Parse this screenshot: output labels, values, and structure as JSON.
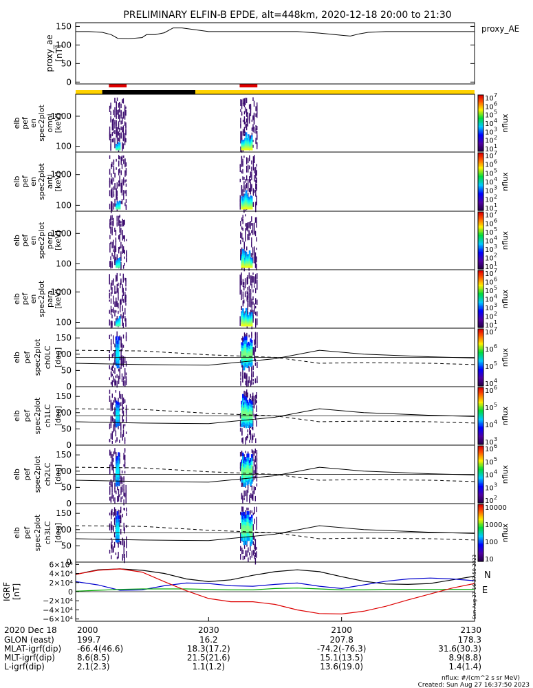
{
  "title": "PRELIMINARY ELFIN-B EPDE, alt=448km, 2020-12-18 20:00 to 21:30",
  "chart_data": [
    {
      "type": "line",
      "panel": "proxy_ae",
      "ylabel": [
        "proxy_ae",
        "[nT]"
      ],
      "legend": "proxy_AE",
      "ylim": [
        -5,
        160
      ],
      "yticks": [
        "0",
        "50",
        "100",
        "150"
      ],
      "x": [
        0,
        1,
        3,
        6,
        8,
        9.5,
        12,
        15,
        16,
        18,
        20,
        22,
        23,
        24,
        30,
        40,
        50,
        55,
        60,
        62,
        64,
        66,
        70,
        80,
        90
      ],
      "values": [
        136,
        136,
        136,
        134,
        128,
        118,
        117,
        120,
        128,
        128,
        133,
        146,
        146,
        146,
        136,
        136,
        136,
        132,
        126,
        124,
        130,
        134,
        136,
        136,
        136
      ]
    },
    {
      "type": "heatmap",
      "panel": "status_bar",
      "segments": [
        {
          "from": 0,
          "to": 6,
          "color": "#ffd200"
        },
        {
          "from": 6,
          "to": 27,
          "color": "#000000"
        },
        {
          "from": 27,
          "to": 90,
          "color": "#ffd200"
        }
      ],
      "science_zones": [
        [
          7.5,
          11.5
        ],
        [
          37.0,
          41.0
        ]
      ]
    },
    {
      "type": "heatmap",
      "panel": "omni",
      "ylabel": [
        "elb",
        "pef",
        "en",
        "spec2plot",
        "omni",
        "[keV]"
      ],
      "y_scale": "log",
      "yticks": [
        "100",
        "1000"
      ],
      "colorbar": {
        "label": "nflux",
        "ticks": [
          "10",
          "10",
          "10",
          "10",
          "10",
          "10",
          "10"
        ],
        "exps": [
          "1",
          "2",
          "3",
          "4",
          "5",
          "6",
          "7"
        ]
      }
    },
    {
      "type": "heatmap",
      "panel": "anti",
      "ylabel": [
        "elb",
        "pef",
        "en",
        "spec2plot",
        "anti",
        "[keV]"
      ],
      "y_scale": "log",
      "yticks": [
        "100",
        "1000"
      ],
      "colorbar": {
        "label": "nflux",
        "ticks": [
          "10",
          "10",
          "10",
          "10",
          "10",
          "10",
          "10"
        ],
        "exps": [
          "1",
          "2",
          "3",
          "4",
          "5",
          "6",
          "7"
        ]
      }
    },
    {
      "type": "heatmap",
      "panel": "perp",
      "ylabel": [
        "elb",
        "pef",
        "en",
        "spec2plot",
        "perp",
        "[keV]"
      ],
      "y_scale": "log",
      "yticks": [
        "100",
        "1000"
      ],
      "colorbar": {
        "label": "nflux",
        "ticks": [
          "10",
          "10",
          "10",
          "10",
          "10",
          "10",
          "10"
        ],
        "exps": [
          "1",
          "2",
          "3",
          "4",
          "5",
          "6",
          "7"
        ]
      }
    },
    {
      "type": "heatmap",
      "panel": "para",
      "ylabel": [
        "elb",
        "pef",
        "en",
        "spec2plot",
        "para",
        "[keV]"
      ],
      "y_scale": "log",
      "yticks": [
        "100",
        "1000"
      ],
      "colorbar": {
        "label": "nflux",
        "ticks": [
          "10",
          "10",
          "10",
          "10",
          "10",
          "10",
          "10"
        ],
        "exps": [
          "1",
          "2",
          "3",
          "4",
          "5",
          "6",
          "7"
        ]
      }
    },
    {
      "type": "heatmap",
      "panel": "ch0LC",
      "ylabel": [
        "elb",
        "pef",
        "spec2plot",
        "ch0LC",
        "[deg]"
      ],
      "ylim": [
        0,
        180
      ],
      "yticks": [
        "0",
        "50",
        "100",
        "150"
      ],
      "colorbar": {
        "label": "nflux",
        "ticks": [
          "10",
          "10",
          "10",
          "10"
        ],
        "exps": [
          "4",
          "5",
          "6",
          "7"
        ]
      }
    },
    {
      "type": "heatmap",
      "panel": "ch1LC",
      "ylabel": [
        "elb",
        "pef",
        "spec2plot",
        "ch1LC",
        "[deg]"
      ],
      "ylim": [
        0,
        180
      ],
      "yticks": [
        "0",
        "50",
        "100",
        "150"
      ],
      "colorbar": {
        "label": "nflux",
        "ticks": [
          "10",
          "10",
          "10",
          "10"
        ],
        "exps": [
          "3",
          "4",
          "5",
          "6"
        ]
      }
    },
    {
      "type": "heatmap",
      "panel": "ch2LC",
      "ylabel": [
        "elb",
        "pef",
        "spec2plot",
        "ch2LC",
        "[deg]"
      ],
      "ylim": [
        0,
        180
      ],
      "yticks": [
        "0",
        "50",
        "100",
        "150"
      ],
      "colorbar": {
        "label": "nflux",
        "ticks": [
          "10",
          "10",
          "10",
          "10",
          "10"
        ],
        "exps": [
          "2",
          "3",
          "4",
          "5",
          "6"
        ]
      }
    },
    {
      "type": "heatmap",
      "panel": "ch3LC",
      "ylabel": [
        "elb",
        "pef",
        "spec2plot",
        "ch3LC",
        "[deg]"
      ],
      "ylim": [
        0,
        180
      ],
      "yticks": [
        "0",
        "50",
        "100",
        "150"
      ],
      "colorbar": {
        "label": "nflux",
        "ticks": [
          "10",
          "100",
          "1000",
          "10000"
        ],
        "exps": [
          "",
          "",
          "",
          ""
        ]
      }
    },
    {
      "type": "line",
      "panel": "IGRF",
      "ylabel": [
        "IGRF",
        "[nT]"
      ],
      "ylim": [
        -65000,
        65000
      ],
      "yticks": [
        "6×10⁴",
        "4×10⁴",
        "2×10⁴",
        "0",
        "−2×10⁴",
        "−4×10⁴",
        "−6×10⁴"
      ],
      "legend": [
        "N",
        "E"
      ],
      "series": [
        {
          "name": "N",
          "color": "#000000",
          "x": [
            0,
            5,
            10,
            15,
            20,
            25,
            30,
            35,
            40,
            45,
            50,
            55,
            60,
            65,
            70,
            75,
            80,
            85,
            90
          ],
          "values": [
            38000,
            48000,
            50000,
            47000,
            40000,
            28000,
            22000,
            26000,
            36000,
            44000,
            48000,
            44000,
            33000,
            23000,
            17000,
            16000,
            18000,
            26000,
            34000
          ]
        },
        {
          "name": "E",
          "color": "#0000cc",
          "x": [
            0,
            5,
            10,
            15,
            20,
            25,
            30,
            35,
            40,
            45,
            50,
            55,
            60,
            65,
            70,
            75,
            80,
            85,
            90
          ],
          "values": [
            22000,
            15000,
            3000,
            4000,
            13000,
            19000,
            18000,
            13000,
            12000,
            16000,
            19000,
            12000,
            7000,
            15000,
            23000,
            28000,
            30000,
            28000,
            24000
          ]
        },
        {
          "name": "",
          "color": "#00aa00",
          "x": [
            0,
            5,
            10,
            15,
            20,
            25,
            30,
            35,
            40,
            45,
            50,
            55,
            60,
            65,
            70,
            75,
            80,
            85,
            90
          ],
          "values": [
            1000,
            3000,
            5000,
            6000,
            6000,
            6000,
            5000,
            4000,
            4000,
            7000,
            8000,
            6000,
            4000,
            4000,
            5000,
            5000,
            5000,
            5000,
            5000
          ]
        },
        {
          "name": "",
          "color": "#dd0000",
          "x": [
            0,
            5,
            10,
            15,
            20,
            25,
            30,
            35,
            40,
            45,
            50,
            55,
            60,
            65,
            70,
            75,
            80,
            85,
            90
          ],
          "values": [
            38000,
            47000,
            50000,
            43000,
            22000,
            2000,
            -15000,
            -22000,
            -22000,
            -28000,
            -40000,
            -48000,
            -49000,
            -43000,
            -32000,
            -18000,
            -5000,
            8000,
            18000
          ]
        }
      ]
    }
  ],
  "xaxis": {
    "ticks": [
      "2000",
      "2030",
      "2100",
      "2130"
    ],
    "rows": [
      {
        "label": "2020 Dec 18",
        "values": [
          "2000",
          "2030",
          "2100",
          "2130"
        ]
      },
      {
        "label": "GLON (east)",
        "values": [
          "199.7",
          "16.2",
          "207.8",
          "178.3"
        ]
      },
      {
        "label": "MLAT-igrf(dip)",
        "values": [
          "-66.4(46.6)",
          "18.3(17.2)",
          "-74.2(-76.3)",
          "31.6(30.3)"
        ]
      },
      {
        "label": "MLT-igrf(dip)",
        "values": [
          "8.6(8.5)",
          "21.5(21.6)",
          "15.1(13.5)",
          "8.9(8.8)"
        ]
      },
      {
        "label": "L-igrf(dip)",
        "values": [
          "2.1(2.3)",
          "1.1(1.2)",
          "13.6(19.0)",
          "1.4(1.4)"
        ]
      }
    ]
  },
  "footer": {
    "units": "nflux: #/(cm^2 s sr MeV)",
    "created": "Created: Sun Aug 27 16:37:50 2023",
    "side_stamp": "Sun Aug 27 16:37:50 2023"
  }
}
